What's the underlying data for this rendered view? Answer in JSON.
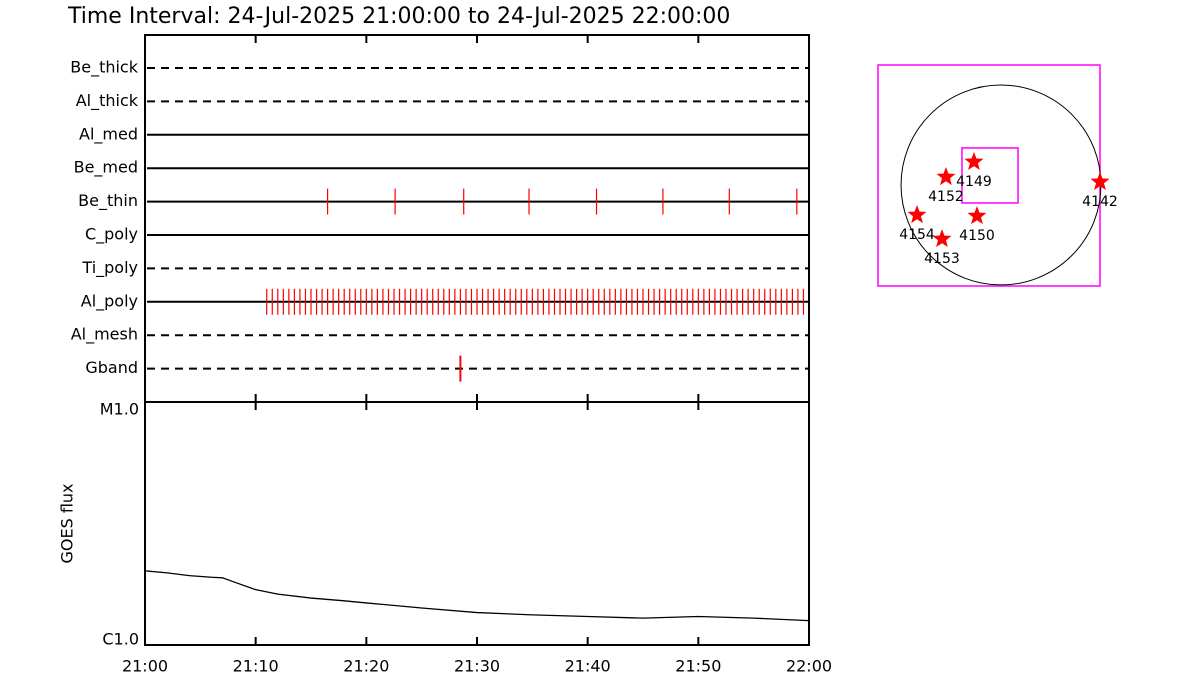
{
  "title": "Time Interval: 24-Jul-2025 21:00:00 to 24-Jul-2025 22:00:00",
  "chart_data": [
    {
      "type": "timeline",
      "categories": [
        "Be_thick",
        "Al_thick",
        "Al_med",
        "Be_med",
        "Be_thin",
        "C_poly",
        "Ti_poly",
        "Al_poly",
        "Al_mesh",
        "Gband"
      ],
      "line_styles": [
        "dashed",
        "dashed",
        "solid",
        "solid",
        "solid",
        "solid",
        "dashed",
        "solid",
        "dashed",
        "dashed"
      ],
      "event_color": "#ff0000",
      "xlim": [
        0,
        60
      ],
      "events": [
        [],
        [],
        [],
        [],
        [
          16.5,
          22.6,
          28.8,
          34.7,
          40.8,
          46.8,
          52.8,
          58.9
        ],
        [],
        [],
        [
          11.0,
          11.5,
          12.0,
          12.5,
          13.0,
          13.5,
          14.0,
          14.5,
          15.0,
          15.5,
          16.0,
          16.5,
          17.0,
          17.5,
          18.0,
          18.5,
          19.0,
          19.5,
          20.0,
          20.5,
          21.0,
          21.5,
          22.0,
          22.5,
          23.0,
          23.5,
          24.0,
          24.5,
          25.0,
          25.5,
          26.0,
          26.5,
          27.0,
          27.5,
          28.0,
          28.5,
          29.0,
          29.5,
          30.0,
          30.5,
          31.0,
          31.5,
          32.0,
          32.5,
          33.0,
          33.5,
          34.0,
          34.5,
          35.0,
          35.5,
          36.0,
          36.5,
          37.0,
          37.5,
          38.0,
          38.5,
          39.0,
          39.5,
          40.0,
          40.5,
          41.0,
          41.5,
          42.0,
          42.5,
          43.0,
          43.5,
          44.0,
          44.5,
          45.0,
          45.5,
          46.0,
          46.5,
          47.0,
          47.5,
          48.0,
          48.5,
          49.0,
          49.5,
          50.0,
          50.5,
          51.0,
          51.5,
          52.0,
          52.5,
          53.0,
          53.5,
          54.0,
          54.5,
          55.0,
          55.5,
          56.0,
          56.5,
          57.0,
          57.5,
          58.0,
          58.5,
          59.0,
          59.5
        ],
        [],
        [
          28.5
        ]
      ]
    },
    {
      "type": "line",
      "ylabel": "GOES flux",
      "ylog": true,
      "color": "#000000",
      "x": [
        0,
        2,
        4,
        6,
        7,
        8,
        10,
        12,
        15,
        18,
        20,
        25,
        30,
        35,
        40,
        45,
        50,
        55,
        60
      ],
      "values": [
        2.02e-06,
        1.98e-06,
        1.93e-06,
        1.9e-06,
        1.89e-06,
        1.82e-06,
        1.69e-06,
        1.62e-06,
        1.56e-06,
        1.52e-06,
        1.49e-06,
        1.42e-06,
        1.36e-06,
        1.33e-06,
        1.31e-06,
        1.29e-06,
        1.31e-06,
        1.29e-06,
        1.26e-06
      ],
      "xlim": [
        0,
        60
      ],
      "xticks": [
        {
          "value": 0,
          "label": "21:00"
        },
        {
          "value": 10,
          "label": "21:10"
        },
        {
          "value": 20,
          "label": "21:20"
        },
        {
          "value": 30,
          "label": "21:30"
        },
        {
          "value": 40,
          "label": "21:40"
        },
        {
          "value": 50,
          "label": "21:50"
        },
        {
          "value": 60,
          "label": "22:00"
        }
      ],
      "ylim": [
        1e-06,
        1e-05
      ],
      "yticks": [
        {
          "value": 1e-05,
          "label": "M1.0"
        },
        {
          "value": 1e-06,
          "label": "C1.0"
        }
      ]
    },
    {
      "type": "map",
      "xlim": [
        -1169,
        941
      ],
      "ylim": [
        -960,
        1140
      ],
      "disk_radius": 950,
      "box_color": "#ff00ff",
      "fov": {
        "xlim": [
          -371,
          162
        ],
        "ylim": [
          -171,
          352
        ]
      },
      "marker_color": "#ff0000",
      "labels": [
        "4149",
        "4152",
        "4142",
        "4154",
        "4150",
        "4153"
      ],
      "x": [
        -257,
        -523,
        941,
        -798,
        -228,
        -561
      ],
      "y": [
        219,
        76,
        29,
        -285,
        -295,
        -513
      ]
    }
  ]
}
